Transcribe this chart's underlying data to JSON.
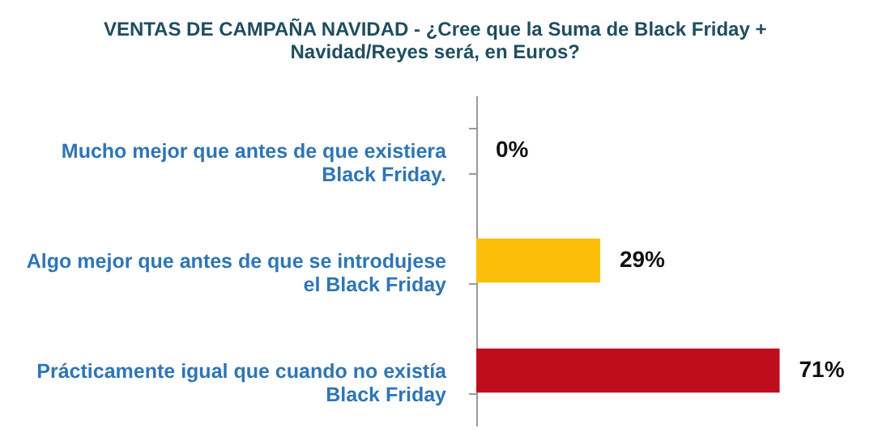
{
  "chart_data": {
    "type": "bar",
    "orientation": "horizontal",
    "title": "VENTAS DE CAMPAÑA NAVIDAD - ¿Cree que la Suma de Black Friday +\nNavidad/Reyes será, en Euros?",
    "categories": [
      "Mucho mejor que antes de que existiera Black Friday.",
      "Algo mejor que antes de que se introdujese el Black Friday",
      "Prácticamente igual que cuando no existía Black Friday"
    ],
    "values": [
      0,
      29,
      71
    ],
    "value_labels": [
      "0%",
      "29%",
      "71%"
    ],
    "colors": [
      "#fbbf09",
      "#fbbf09",
      "#c00d1e"
    ],
    "grid": false
  }
}
